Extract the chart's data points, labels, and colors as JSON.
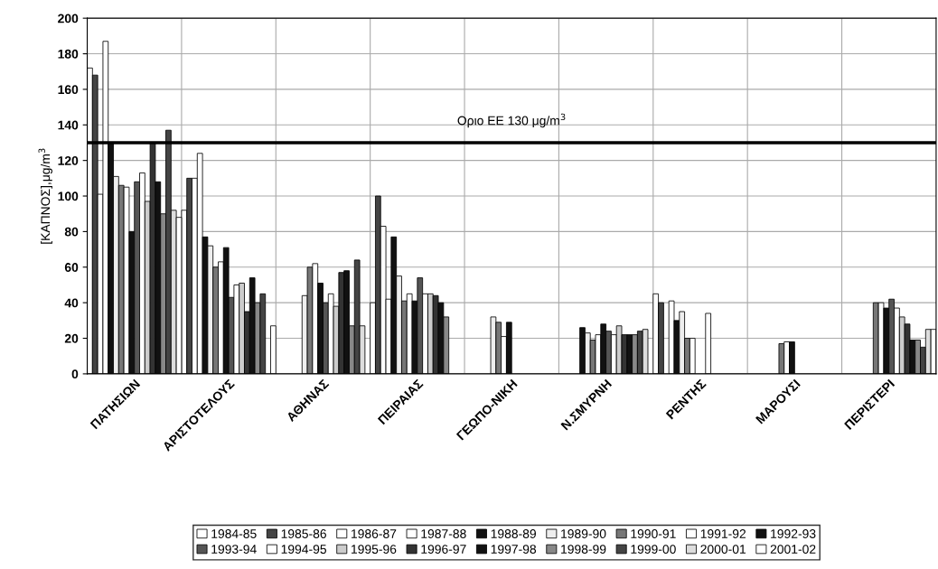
{
  "chart_data": {
    "type": "bar",
    "ylabel": "[ΚΑΠΝΟΣ],μg/m$^{3}$",
    "categories": [
      "ΠΑΤΗΣΙΩΝ",
      "ΑΡΙΣΤΟΤΕΛΟΥΣ",
      "ΑΘΗΝΑΣ",
      "ΠΕΙΡΑΙΑΣ",
      "ΓΕΩΠΟ-ΝΙΚΗ",
      "Ν.ΣΜΥΡΝΗ",
      "ΡΕΝΤΗΣ",
      "ΜΑΡΟΥΣΙ",
      "ΠΕΡΙΣΤΕΡΙ"
    ],
    "series": [
      {
        "name": "1984-85",
        "color": "#ffffff",
        "values": [
          172,
          92,
          null,
          40,
          null,
          null,
          45,
          null,
          null
        ]
      },
      {
        "name": "1985-86",
        "color": "#444444",
        "values": [
          168,
          110,
          null,
          100,
          null,
          null,
          40,
          null,
          null
        ]
      },
      {
        "name": "1986-87",
        "color": "#ffffff",
        "values": [
          101,
          110,
          null,
          83,
          null,
          null,
          null,
          null,
          null
        ]
      },
      {
        "name": "1987-88",
        "color": "#ffffff",
        "values": [
          187,
          124,
          null,
          42,
          null,
          null,
          41,
          null,
          null
        ]
      },
      {
        "name": "1988-89",
        "color": "#111111",
        "values": [
          130,
          77,
          null,
          77,
          null,
          26,
          30,
          null,
          null
        ]
      },
      {
        "name": "1989-90",
        "color": "#eeeeee",
        "values": [
          111,
          72,
          44,
          55,
          32,
          23,
          35,
          null,
          null
        ]
      },
      {
        "name": "1990-91",
        "color": "#777777",
        "values": [
          106,
          60,
          60,
          41,
          29,
          19,
          20,
          17,
          40
        ]
      },
      {
        "name": "1991-92",
        "color": "#ffffff",
        "values": [
          105,
          63,
          62,
          45,
          21,
          22,
          20,
          18,
          40
        ]
      },
      {
        "name": "1992-93",
        "color": "#111111",
        "values": [
          80,
          71,
          51,
          41,
          29,
          28,
          null,
          18,
          37
        ]
      },
      {
        "name": "1993-94",
        "color": "#555555",
        "values": [
          108,
          43,
          40,
          54,
          null,
          24,
          null,
          null,
          42
        ]
      },
      {
        "name": "1994-95",
        "color": "#ffffff",
        "values": [
          113,
          50,
          45,
          45,
          null,
          22,
          34,
          null,
          37
        ]
      },
      {
        "name": "1995-96",
        "color": "#cccccc",
        "values": [
          97,
          51,
          38,
          45,
          null,
          27,
          null,
          null,
          32
        ]
      },
      {
        "name": "1996-97",
        "color": "#333333",
        "values": [
          130,
          35,
          57,
          44,
          null,
          22,
          null,
          null,
          28
        ]
      },
      {
        "name": "1997-98",
        "color": "#111111",
        "values": [
          108,
          54,
          58,
          40,
          null,
          22,
          null,
          null,
          19
        ]
      },
      {
        "name": "1998-99",
        "color": "#888888",
        "values": [
          90,
          40,
          27,
          32,
          null,
          22,
          null,
          null,
          19
        ]
      },
      {
        "name": "1999-00",
        "color": "#444444",
        "values": [
          137,
          45,
          64,
          null,
          null,
          24,
          null,
          null,
          15
        ]
      },
      {
        "name": "2000-01",
        "color": "#dddddd",
        "values": [
          92,
          null,
          27,
          null,
          null,
          25,
          null,
          null,
          25
        ]
      },
      {
        "name": "2001-02",
        "color": "#ffffff",
        "values": [
          88,
          27,
          null,
          null,
          null,
          null,
          null,
          null,
          25
        ]
      }
    ],
    "ylim": [
      0,
      200
    ],
    "yticks": [
      0,
      20,
      40,
      60,
      80,
      100,
      120,
      140,
      160,
      180,
      200
    ],
    "ref_lines": [
      {
        "axis": "y",
        "value": 130,
        "label": "Οριο ΕΕ 130 μg/m$^{3}$",
        "color": "#000000"
      }
    ],
    "grid": true,
    "legend": "bottom"
  }
}
